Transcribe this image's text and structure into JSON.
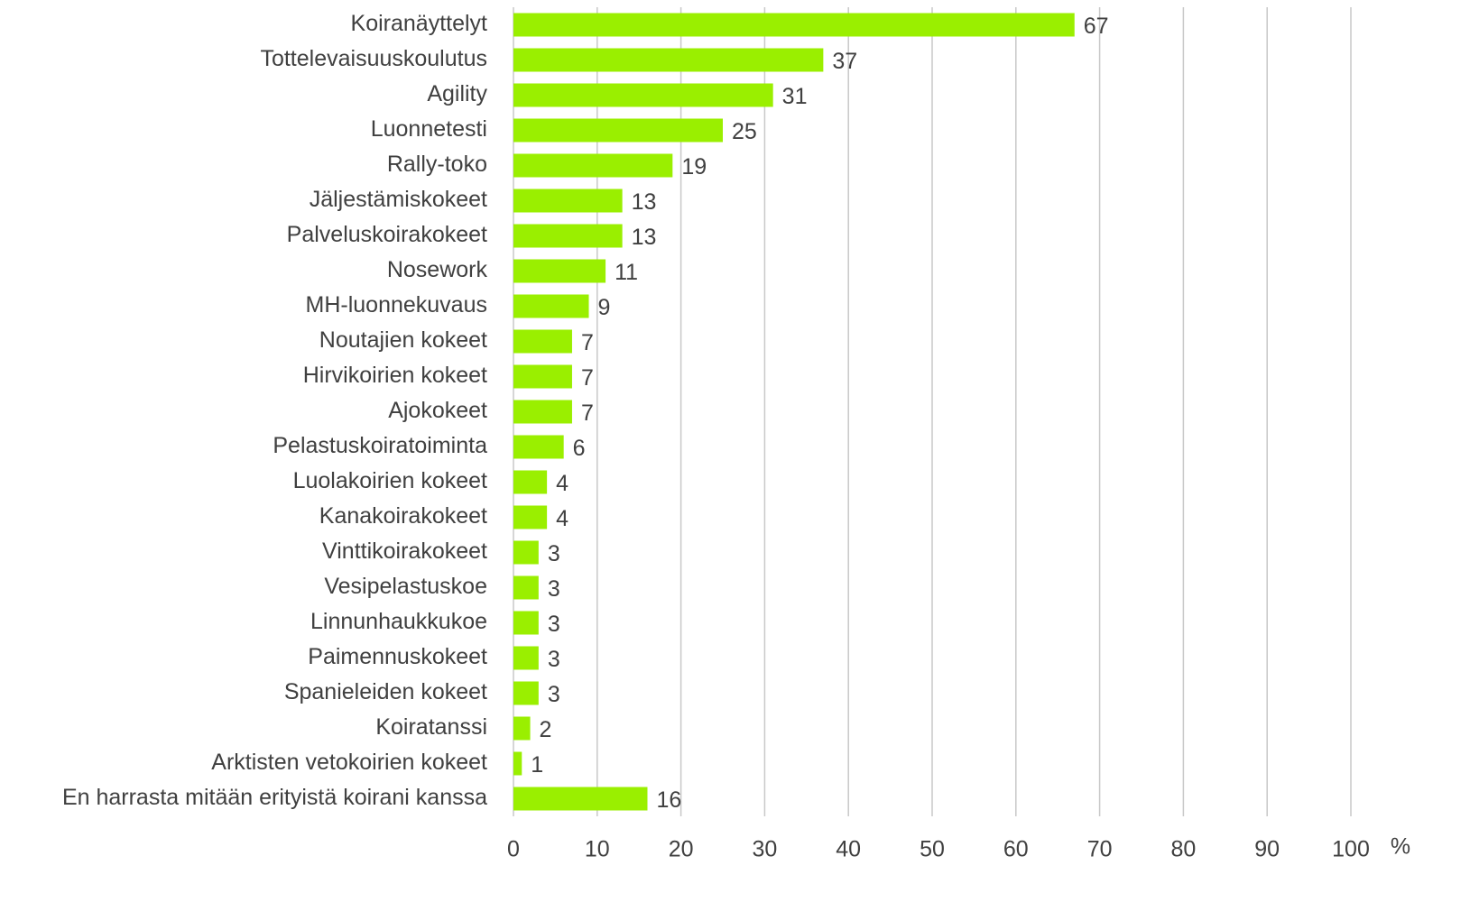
{
  "chart_data": {
    "type": "bar",
    "orientation": "horizontal",
    "categories": [
      "Koiranäyttelyt",
      "Tottelevaisuuskoulutus",
      "Agility",
      "Luonnetesti",
      "Rally-toko",
      "Jäljestämiskokeet",
      "Palveluskoirakokeet",
      "Nosework",
      "MH-luonnekuvaus",
      "Noutajien kokeet",
      "Hirvikoirien kokeet",
      "Ajokokeet",
      "Pelastuskoiratoiminta",
      "Luolakoirien kokeet",
      "Kanakoirakokeet",
      "Vinttikoirakokeet",
      "Vesipelastuskoe",
      "Linnunhaukkukoe",
      "Paimennuskokeet",
      "Spanieleiden kokeet",
      "Koiratanssi",
      "Arktisten vetokoirien kokeet",
      "En harrasta mitään erityistä koirani kanssa"
    ],
    "values": [
      67,
      37,
      31,
      25,
      19,
      13,
      13,
      11,
      9,
      7,
      7,
      7,
      6,
      4,
      4,
      3,
      3,
      3,
      3,
      3,
      2,
      1,
      16
    ],
    "color": "#9aef00",
    "x_label": "%",
    "xlim": [
      0,
      100
    ],
    "xticks": [
      0,
      10,
      20,
      30,
      40,
      50,
      60,
      70,
      80,
      90,
      100
    ],
    "grid": true
  }
}
